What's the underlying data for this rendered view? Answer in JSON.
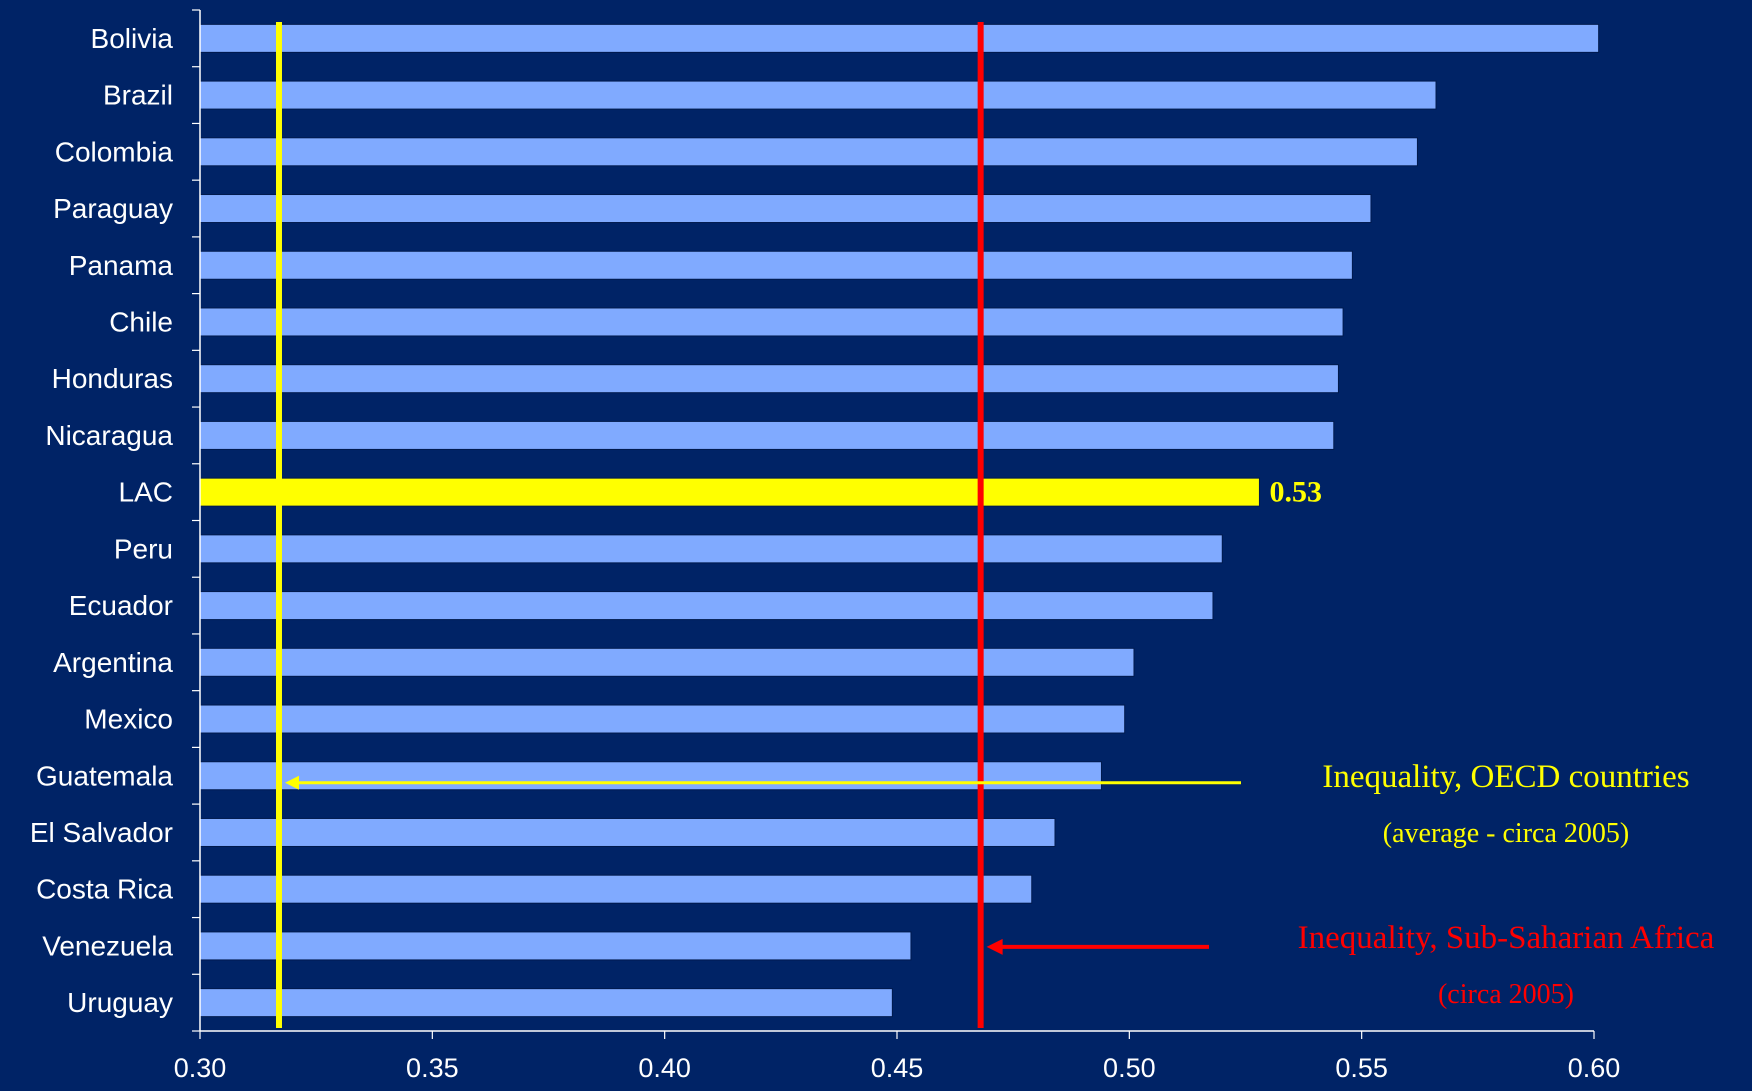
{
  "chart_data": {
    "type": "bar",
    "orientation": "horizontal",
    "categories": [
      "Bolivia",
      "Brazil",
      "Colombia",
      "Paraguay",
      "Panama",
      "Chile",
      "Honduras",
      "Nicaragua",
      "LAC",
      "Peru",
      "Ecuador",
      "Argentina",
      "Mexico",
      "Guatemala",
      "El Salvador",
      "Costa Rica",
      "Venezuela",
      "Uruguay"
    ],
    "values": [
      0.601,
      0.566,
      0.562,
      0.552,
      0.548,
      0.546,
      0.545,
      0.544,
      0.528,
      0.52,
      0.518,
      0.501,
      0.499,
      0.494,
      0.484,
      0.479,
      0.453,
      0.449
    ],
    "highlight": {
      "category": "LAC",
      "label": "0.53",
      "color": "#ffff00"
    },
    "xlim": [
      0.3,
      0.6
    ],
    "x_ticks": [
      "0.30",
      "0.35",
      "0.40",
      "0.45",
      "0.50",
      "0.55",
      "0.60"
    ],
    "grid": false,
    "bar_color": "#80aaff",
    "reference_lines": [
      {
        "value": 0.317,
        "color": "#ffff00",
        "label": "Inequality, OECD countries",
        "sublabel": "(average - circa 2005)"
      },
      {
        "value": 0.468,
        "color": "#ff0000",
        "label": "Inequality, Sub-Saharian Africa",
        "sublabel": "(circa 2005)"
      }
    ]
  },
  "colors": {
    "background": "#002366",
    "axis": "#ffffff",
    "text": "#ffffff"
  }
}
